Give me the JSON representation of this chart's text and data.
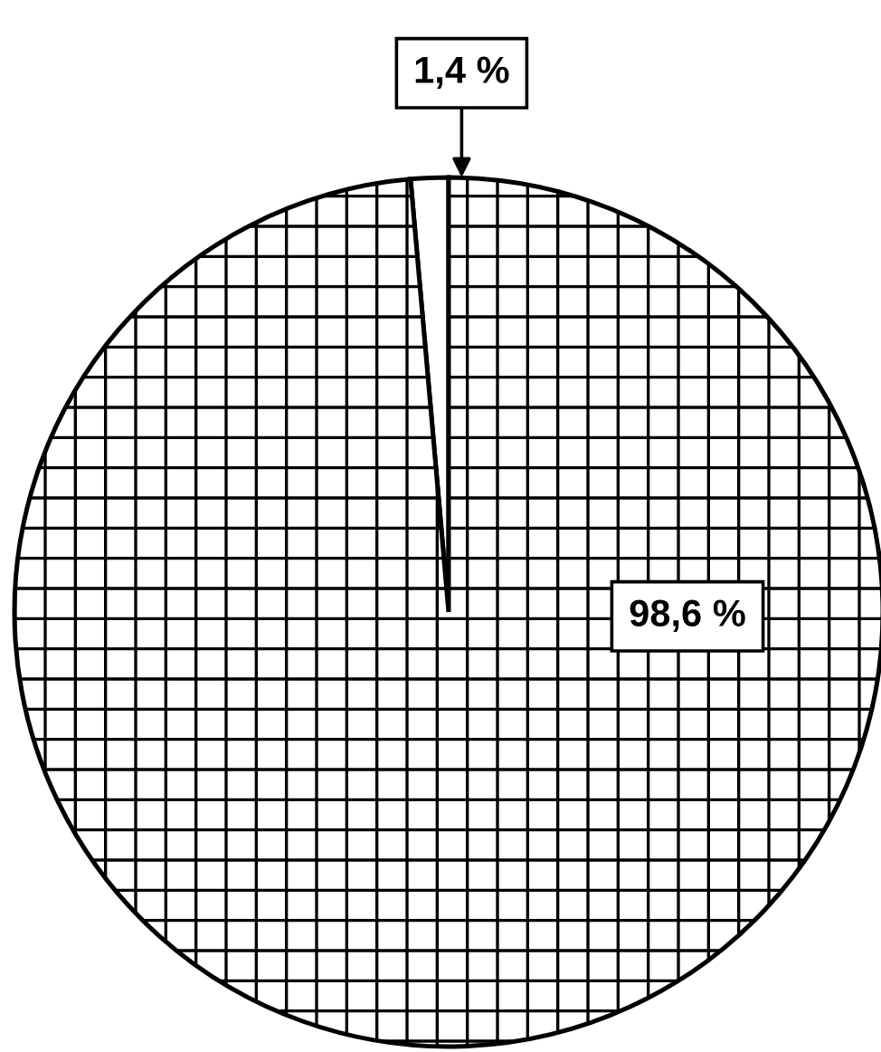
{
  "chart_data": {
    "type": "pie",
    "categories": [
      null,
      null
    ],
    "values": [
      1.4,
      98.6
    ],
    "colors": [
      "#ffffff",
      "#ffffff"
    ],
    "value_labels": [
      "1,4 %",
      "98,6 %"
    ],
    "legend": false
  }
}
